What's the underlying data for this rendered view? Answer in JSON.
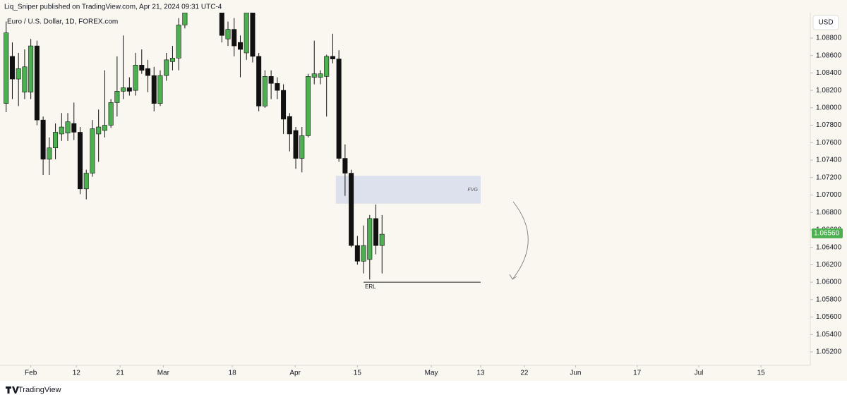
{
  "header": "Liq_Sniper published on TradingView.com, Apr 21, 2024 09:31 UTC-4",
  "footer": "TradingView",
  "chart_data": {
    "type": "candlestick",
    "title": "Euro / U.S. Dollar, 1D, FOREX.com",
    "currency": "USD",
    "up_color": "#4caf50",
    "down_color": "#111111",
    "last_price": {
      "value": 1.0656,
      "label": "1.06560"
    },
    "x": [
      -4,
      -3,
      -2,
      -1,
      0,
      1,
      2,
      3,
      4,
      5,
      6,
      7,
      8,
      9,
      10,
      11,
      12,
      13,
      14,
      15,
      16,
      17,
      18,
      19,
      20,
      21,
      22,
      23,
      24,
      25,
      31,
      32,
      33,
      34,
      35,
      36,
      37,
      38,
      39,
      40,
      41,
      42,
      43,
      44,
      45,
      46,
      47,
      48,
      49,
      50,
      51,
      52,
      53,
      54,
      55,
      56,
      57
    ],
    "open": [
      1.0805,
      1.0859,
      1.0833,
      1.0818,
      1.0818,
      1.0871,
      1.0786,
      1.0741,
      1.0754,
      1.077,
      1.0771,
      1.0782,
      1.0772,
      1.0707,
      1.0725,
      1.077,
      1.0774,
      1.078,
      1.0806,
      1.0819,
      1.0823,
      1.082,
      1.0849,
      1.0845,
      1.0837,
      1.0805,
      1.0837,
      1.0853,
      1.0857,
      1.0895,
      1.0909,
      1.0879,
      1.089,
      1.0875,
      1.0863,
      1.0909,
      1.0859,
      1.0802,
      1.0836,
      1.0828,
      1.082,
      1.079,
      1.0774,
      1.0742,
      1.0768,
      1.0835,
      1.0835,
      1.0836,
      1.0859,
      1.0856,
      1.0742,
      1.0725,
      1.0642,
      1.0624,
      1.0626,
      1.0673,
      1.0642
    ],
    "high": [
      1.0899,
      1.0875,
      1.0863,
      1.0867,
      1.0879,
      1.0877,
      1.079,
      1.0766,
      1.0782,
      1.0794,
      1.0794,
      1.0806,
      1.0778,
      1.0729,
      1.0786,
      1.0798,
      1.0843,
      1.081,
      1.0859,
      1.0883,
      1.0835,
      1.0863,
      1.0867,
      1.0855,
      1.0847,
      1.0843,
      1.0863,
      1.0871,
      1.0903,
      1.0912,
      1.0909,
      1.0899,
      1.0903,
      1.0883,
      1.0912,
      1.0909,
      1.0863,
      1.0843,
      1.0843,
      1.0835,
      1.0827,
      1.0794,
      1.0778,
      1.0778,
      1.0839,
      1.0877,
      1.0843,
      1.0861,
      1.0885,
      1.0866,
      1.0758,
      1.0729,
      1.0653,
      1.0665,
      1.0677,
      1.0689,
      1.0677
    ],
    "low": [
      1.0795,
      1.081,
      1.0802,
      1.081,
      1.081,
      1.078,
      1.0723,
      1.0723,
      1.0741,
      1.0762,
      1.0762,
      1.0763,
      1.0701,
      1.0695,
      1.0721,
      1.0738,
      1.0766,
      1.0777,
      1.079,
      1.081,
      1.0814,
      1.0814,
      1.0839,
      1.0818,
      1.0796,
      1.0802,
      1.0831,
      1.0843,
      1.0843,
      1.0891,
      1.0875,
      1.0871,
      1.0859,
      1.0835,
      1.0855,
      1.0852,
      1.0796,
      1.08,
      1.081,
      1.081,
      1.077,
      1.075,
      1.073,
      1.0726,
      1.0766,
      1.0827,
      1.0827,
      1.079,
      1.0851,
      1.0738,
      1.0699,
      1.064,
      1.062,
      1.061,
      1.0603,
      1.0632,
      1.061
    ],
    "close": [
      1.0886,
      1.0833,
      1.0845,
      1.0847,
      1.0871,
      1.0786,
      1.0741,
      1.0754,
      1.0772,
      1.0778,
      1.0784,
      1.0772,
      1.0707,
      1.0725,
      1.0776,
      1.0778,
      1.078,
      1.0806,
      1.0819,
      1.0823,
      1.0819,
      1.0849,
      1.0843,
      1.0837,
      1.0805,
      1.0837,
      1.0855,
      1.0857,
      1.0895,
      1.0909,
      1.0883,
      1.089,
      1.0871,
      1.0867,
      1.0909,
      1.0859,
      1.0802,
      1.0836,
      1.0828,
      1.082,
      1.0787,
      1.077,
      1.0742,
      1.0768,
      1.0836,
      1.0839,
      1.0839,
      1.0859,
      1.0856,
      1.0742,
      1.0725,
      1.0642,
      1.0624,
      1.0642,
      1.0673,
      1.0642,
      1.0655
    ],
    "xlim": [
      -5,
      126.5
    ],
    "ylim": [
      1.05046,
      1.09091
    ],
    "xticks": [
      {
        "value": 0,
        "label": "Feb"
      },
      {
        "value": 7.4,
        "label": "12"
      },
      {
        "value": 14.5,
        "label": "21"
      },
      {
        "value": 21.5,
        "label": "Mar"
      },
      {
        "value": 32.7,
        "label": "18"
      },
      {
        "value": 42.9,
        "label": "Apr"
      },
      {
        "value": 53,
        "label": "15"
      },
      {
        "value": 65,
        "label": "May"
      },
      {
        "value": 73,
        "label": "13"
      },
      {
        "value": 80.1,
        "label": "22"
      },
      {
        "value": 88.4,
        "label": "Jun"
      },
      {
        "value": 98.4,
        "label": "17"
      },
      {
        "value": 108.4,
        "label": "Jul"
      },
      {
        "value": 118.5,
        "label": "15"
      }
    ],
    "yticks": [
      {
        "value": 1.088,
        "label": "1.08800"
      },
      {
        "value": 1.086,
        "label": "1.08600"
      },
      {
        "value": 1.084,
        "label": "1.08400"
      },
      {
        "value": 1.082,
        "label": "1.08200"
      },
      {
        "value": 1.08,
        "label": "1.08000"
      },
      {
        "value": 1.078,
        "label": "1.07800"
      },
      {
        "value": 1.076,
        "label": "1.07600"
      },
      {
        "value": 1.074,
        "label": "1.07400"
      },
      {
        "value": 1.072,
        "label": "1.07200"
      },
      {
        "value": 1.07,
        "label": "1.07000"
      },
      {
        "value": 1.068,
        "label": "1.06800"
      },
      {
        "value": 1.066,
        "label": "1.06600"
      },
      {
        "value": 1.064,
        "label": "1.06400"
      },
      {
        "value": 1.062,
        "label": "1.06200"
      },
      {
        "value": 1.06,
        "label": "1.06000"
      },
      {
        "value": 1.058,
        "label": "1.05800"
      },
      {
        "value": 1.056,
        "label": "1.05600"
      },
      {
        "value": 1.054,
        "label": "1.05400"
      },
      {
        "value": 1.052,
        "label": "1.05200"
      }
    ],
    "fvg": {
      "label": "FVG",
      "x": [
        49.5,
        73
      ],
      "y": [
        1.069,
        1.0722
      ],
      "color": "#dde1ee"
    },
    "erl": {
      "label": "ERL",
      "x": [
        54,
        73
      ],
      "y": 1.06
    }
  }
}
